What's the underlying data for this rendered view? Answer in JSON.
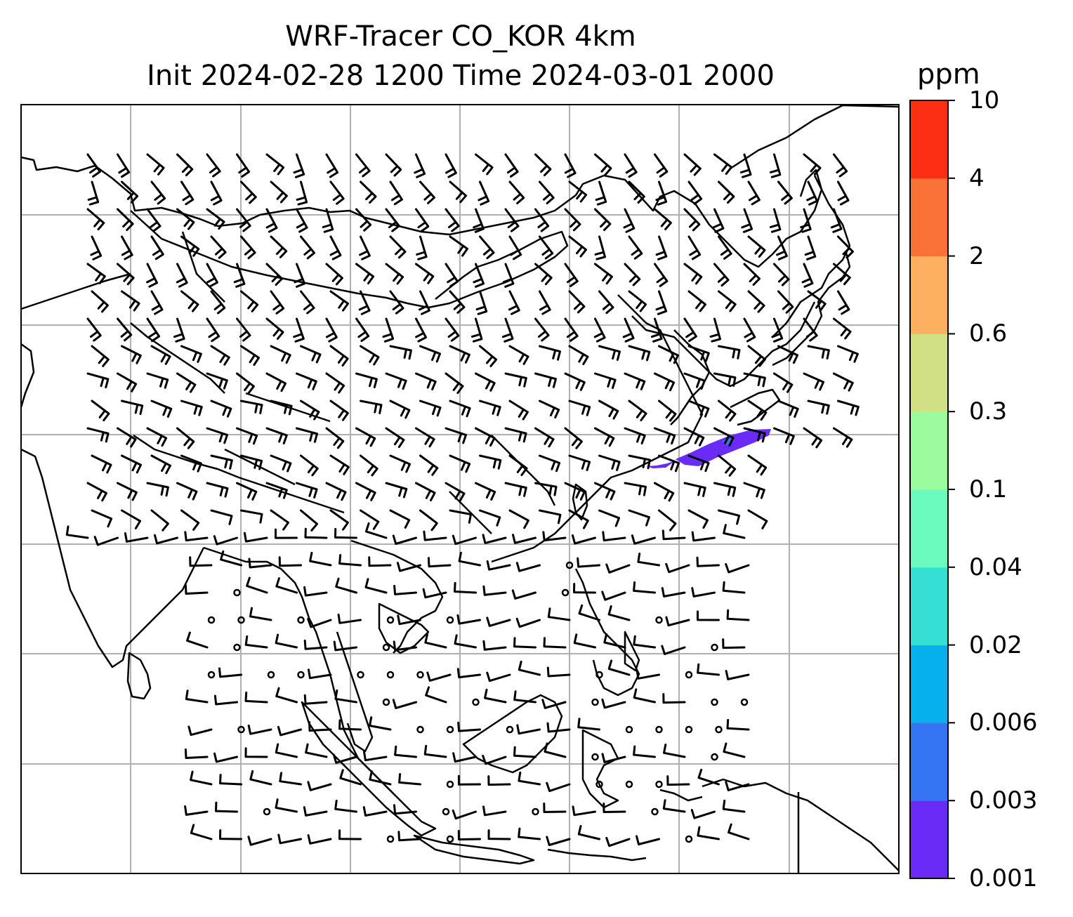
{
  "title": {
    "line1": "WRF-Tracer CO_KOR 4km",
    "line2": "Init 2024-02-28 1200 Time 2024-03-01 2000"
  },
  "colorbar": {
    "unit": "ppm",
    "levels": [
      "0.001",
      "0.003",
      "0.006",
      "0.02",
      "0.04",
      "0.1",
      "0.3",
      "0.6",
      "2",
      "4",
      "10"
    ],
    "colors": [
      "#6a2bf7",
      "#3575f4",
      "#05b0ec",
      "#35dfd2",
      "#6cfbbe",
      "#9bfc9d",
      "#d1e085",
      "#fcb060",
      "#fb7238",
      "#fc2f14"
    ]
  },
  "map": {
    "projection": "regional map with lat/lon gridlines",
    "features": [
      "coastlines",
      "country borders",
      "wind barbs",
      "CO tracer concentration plume"
    ],
    "plume_color": "#6a2bf7"
  }
}
